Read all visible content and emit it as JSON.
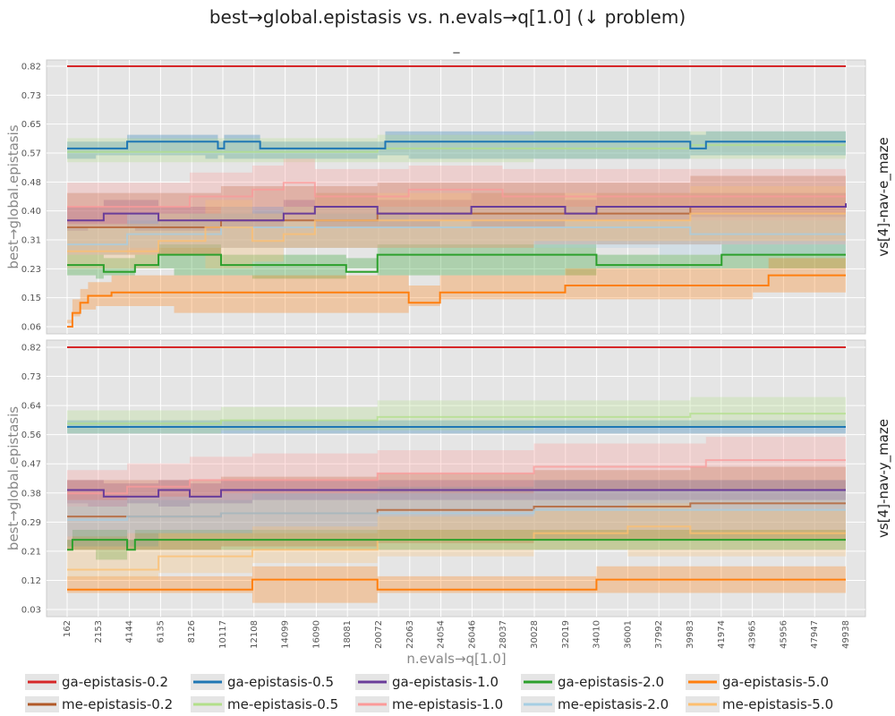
{
  "title": "best→global.epistasis vs. n.evals→q[1.0] (↓ problem)",
  "subtitle": "_",
  "colors": {
    "ga-epistasis-0.2": "#d62728",
    "ga-epistasis-0.5": "#1f77b4",
    "ga-epistasis-1.0": "#6a3d9a",
    "ga-epistasis-2.0": "#2ca02c",
    "ga-epistasis-5.0": "#ff7f0e",
    "me-epistasis-0.2": "#b15928",
    "me-epistasis-0.5": "#b2df8a",
    "me-epistasis-1.0": "#fb9a99",
    "me-epistasis-2.0": "#a6cee3",
    "me-epistasis-5.0": "#fdbf6f"
  },
  "legend": [
    "ga-epistasis-0.2",
    "ga-epistasis-0.5",
    "ga-epistasis-1.0",
    "ga-epistasis-2.0",
    "ga-epistasis-5.0",
    "me-epistasis-0.2",
    "me-epistasis-0.5",
    "me-epistasis-1.0",
    "me-epistasis-2.0",
    "me-epistasis-5.0"
  ],
  "chart_data": {
    "type": "line",
    "xlabel": "n.evals→q[1.0]",
    "ylabel": "best→global.epistasis",
    "xlim": [
      162,
      49938
    ],
    "xticks": [
      162,
      2153,
      4144,
      6135,
      8126,
      10117,
      12108,
      14099,
      16090,
      18081,
      20072,
      22063,
      24054,
      26046,
      28037,
      30028,
      32019,
      34010,
      36001,
      37992,
      39983,
      41974,
      43965,
      45956,
      47947,
      49938
    ],
    "panels": [
      {
        "facet": "vs[4]-nav-e_maze",
        "ylim": [
          0.06,
          0.82
        ],
        "yticks": [
          "0.82",
          "0.73",
          "0.65",
          "0.57",
          "0.48",
          "0.40",
          "0.31",
          "0.23",
          "0.15",
          "0.06"
        ],
        "series": [
          {
            "name": "ga-epistasis-0.2",
            "x": [
              162,
              49938
            ],
            "y": [
              0.82,
              0.82
            ],
            "lo": [
              0.82,
              0.82
            ],
            "hi": [
              0.82,
              0.82
            ]
          },
          {
            "name": "ga-epistasis-0.5",
            "x": [
              162,
              2000,
              4000,
              9000,
              9800,
              10200,
              12500,
              20000,
              20500,
              22000,
              40000,
              41000,
              49938
            ],
            "y": [
              0.58,
              0.58,
              0.6,
              0.6,
              0.58,
              0.6,
              0.58,
              0.58,
              0.6,
              0.6,
              0.58,
              0.6,
              0.6
            ],
            "lo": [
              0.55,
              0.55,
              0.56,
              0.56,
              0.55,
              0.56,
              0.55,
              0.55,
              0.56,
              0.56,
              0.55,
              0.56,
              0.56
            ],
            "hi": [
              0.6,
              0.6,
              0.62,
              0.62,
              0.6,
              0.62,
              0.6,
              0.6,
              0.63,
              0.63,
              0.62,
              0.63,
              0.63
            ]
          },
          {
            "name": "ga-epistasis-1.0",
            "x": [
              162,
              1500,
              2500,
              4500,
              6000,
              10000,
              14000,
              16000,
              20000,
              24000,
              26000,
              32000,
              34000,
              40000,
              49938
            ],
            "y": [
              0.37,
              0.37,
              0.39,
              0.39,
              0.37,
              0.37,
              0.39,
              0.41,
              0.39,
              0.39,
              0.41,
              0.39,
              0.41,
              0.41,
              0.42
            ],
            "lo": [
              0.34,
              0.34,
              0.35,
              0.35,
              0.34,
              0.34,
              0.35,
              0.37,
              0.35,
              0.35,
              0.37,
              0.35,
              0.37,
              0.37,
              0.38
            ],
            "hi": [
              0.41,
              0.41,
              0.43,
              0.43,
              0.41,
              0.41,
              0.43,
              0.45,
              0.43,
              0.43,
              0.45,
              0.43,
              0.45,
              0.45,
              0.46
            ]
          },
          {
            "name": "ga-epistasis-2.0",
            "x": [
              162,
              2000,
              2500,
              4500,
              6000,
              7000,
              10000,
              12000,
              18000,
              20000,
              34000,
              42000,
              49938
            ],
            "y": [
              0.24,
              0.24,
              0.22,
              0.24,
              0.27,
              0.27,
              0.24,
              0.24,
              0.22,
              0.27,
              0.24,
              0.27,
              0.27
            ],
            "lo": [
              0.21,
              0.21,
              0.2,
              0.21,
              0.23,
              0.23,
              0.21,
              0.21,
              0.2,
              0.23,
              0.21,
              0.23,
              0.23
            ],
            "hi": [
              0.27,
              0.27,
              0.26,
              0.27,
              0.3,
              0.3,
              0.27,
              0.27,
              0.26,
              0.3,
              0.27,
              0.3,
              0.3
            ]
          },
          {
            "name": "ga-epistasis-5.0",
            "x": [
              162,
              500,
              1000,
              1500,
              2000,
              3000,
              7000,
              22000,
              24000,
              32000,
              44000,
              45000,
              49938
            ],
            "y": [
              0.06,
              0.1,
              0.13,
              0.15,
              0.15,
              0.16,
              0.16,
              0.13,
              0.16,
              0.18,
              0.18,
              0.21,
              0.21
            ],
            "lo": [
              0.06,
              0.07,
              0.09,
              0.11,
              0.11,
              0.12,
              0.12,
              0.1,
              0.12,
              0.14,
              0.14,
              0.16,
              0.16
            ],
            "hi": [
              0.08,
              0.14,
              0.17,
              0.19,
              0.19,
              0.21,
              0.21,
              0.18,
              0.21,
              0.23,
              0.23,
              0.26,
              0.26
            ]
          },
          {
            "name": "me-epistasis-0.2",
            "x": [
              162,
              10000,
              20000,
              30000,
              40000,
              49938
            ],
            "y": [
              0.35,
              0.37,
              0.39,
              0.39,
              0.41,
              0.41
            ],
            "lo": [
              0.25,
              0.27,
              0.29,
              0.29,
              0.3,
              0.3
            ],
            "hi": [
              0.45,
              0.47,
              0.48,
              0.48,
              0.5,
              0.5
            ]
          },
          {
            "name": "me-epistasis-0.5",
            "x": [
              162,
              10000,
              20000,
              30000,
              40000,
              49938
            ],
            "y": [
              0.57,
              0.57,
              0.58,
              0.58,
              0.59,
              0.59
            ],
            "lo": [
              0.54,
              0.54,
              0.54,
              0.54,
              0.55,
              0.55
            ],
            "hi": [
              0.61,
              0.61,
              0.62,
              0.63,
              0.63,
              0.63
            ]
          },
          {
            "name": "me-epistasis-1.0",
            "x": [
              162,
              4000,
              8000,
              12000,
              14000,
              16000,
              22000,
              28000,
              40000,
              49938
            ],
            "y": [
              0.41,
              0.41,
              0.44,
              0.46,
              0.48,
              0.44,
              0.46,
              0.44,
              0.44,
              0.44
            ],
            "lo": [
              0.35,
              0.35,
              0.37,
              0.39,
              0.4,
              0.37,
              0.39,
              0.37,
              0.37,
              0.37
            ],
            "hi": [
              0.48,
              0.48,
              0.51,
              0.53,
              0.55,
              0.52,
              0.53,
              0.52,
              0.52,
              0.52
            ]
          },
          {
            "name": "me-epistasis-2.0",
            "x": [
              162,
              4000,
              10000,
              20000,
              30000,
              38000,
              40000,
              49938
            ],
            "y": [
              0.3,
              0.33,
              0.35,
              0.35,
              0.35,
              0.35,
              0.33,
              0.33
            ],
            "lo": [
              0.24,
              0.27,
              0.29,
              0.29,
              0.29,
              0.29,
              0.27,
              0.27
            ],
            "hi": [
              0.36,
              0.39,
              0.41,
              0.41,
              0.41,
              0.41,
              0.39,
              0.39
            ]
          },
          {
            "name": "me-epistasis-5.0",
            "x": [
              162,
              6000,
              9000,
              12000,
              14000,
              16000,
              30000,
              40000,
              49938
            ],
            "y": [
              0.28,
              0.31,
              0.35,
              0.31,
              0.33,
              0.37,
              0.37,
              0.39,
              0.39
            ],
            "lo": [
              0.2,
              0.23,
              0.27,
              0.23,
              0.25,
              0.29,
              0.29,
              0.31,
              0.31
            ],
            "hi": [
              0.36,
              0.39,
              0.43,
              0.39,
              0.41,
              0.45,
              0.45,
              0.47,
              0.47
            ]
          }
        ]
      },
      {
        "facet": "vs[4]-nav-y_maze",
        "ylim": [
          0.03,
          0.82
        ],
        "yticks": [
          "0.82",
          "0.73",
          "0.64",
          "0.56",
          "0.47",
          "0.38",
          "0.29",
          "0.21",
          "0.12",
          "0.03"
        ],
        "series": [
          {
            "name": "ga-epistasis-0.2",
            "x": [
              162,
              49938
            ],
            "y": [
              0.82,
              0.82
            ],
            "lo": [
              0.82,
              0.82
            ],
            "hi": [
              0.82,
              0.82
            ]
          },
          {
            "name": "ga-epistasis-0.5",
            "x": [
              162,
              49938
            ],
            "y": [
              0.58,
              0.58
            ],
            "lo": [
              0.56,
              0.56
            ],
            "hi": [
              0.6,
              0.6
            ]
          },
          {
            "name": "ga-epistasis-1.0",
            "x": [
              162,
              1500,
              2500,
              4000,
              6000,
              8000,
              10000,
              12000,
              49938
            ],
            "y": [
              0.39,
              0.39,
              0.37,
              0.37,
              0.39,
              0.37,
              0.39,
              0.39,
              0.39
            ],
            "lo": [
              0.35,
              0.35,
              0.34,
              0.34,
              0.35,
              0.34,
              0.35,
              0.35,
              0.36
            ],
            "hi": [
              0.42,
              0.42,
              0.41,
              0.41,
              0.42,
              0.41,
              0.42,
              0.42,
              0.42
            ]
          },
          {
            "name": "ga-epistasis-2.0",
            "x": [
              162,
              500,
              2000,
              4000,
              4500,
              6000,
              49938
            ],
            "y": [
              0.21,
              0.24,
              0.24,
              0.21,
              0.24,
              0.24,
              0.24
            ],
            "lo": [
              0.18,
              0.21,
              0.21,
              0.18,
              0.21,
              0.21,
              0.21
            ],
            "hi": [
              0.24,
              0.27,
              0.27,
              0.24,
              0.27,
              0.27,
              0.27
            ]
          },
          {
            "name": "ga-epistasis-5.0",
            "x": [
              162,
              12000,
              20000,
              34000,
              49938
            ],
            "y": [
              0.09,
              0.12,
              0.09,
              0.12,
              0.12
            ],
            "lo": [
              0.05,
              0.08,
              0.05,
              0.08,
              0.08
            ],
            "hi": [
              0.13,
              0.16,
              0.13,
              0.16,
              0.16
            ]
          },
          {
            "name": "me-epistasis-0.2",
            "x": [
              162,
              10000,
              20000,
              30000,
              40000,
              49938
            ],
            "y": [
              0.31,
              0.32,
              0.33,
              0.34,
              0.35,
              0.35
            ],
            "lo": [
              0.2,
              0.21,
              0.22,
              0.23,
              0.24,
              0.24
            ],
            "hi": [
              0.42,
              0.43,
              0.44,
              0.45,
              0.46,
              0.46
            ]
          },
          {
            "name": "me-epistasis-0.5",
            "x": [
              162,
              10000,
              20000,
              30000,
              40000,
              49938
            ],
            "y": [
              0.59,
              0.6,
              0.61,
              0.61,
              0.62,
              0.62
            ],
            "lo": [
              0.55,
              0.56,
              0.57,
              0.57,
              0.58,
              0.58
            ],
            "hi": [
              0.63,
              0.64,
              0.66,
              0.66,
              0.67,
              0.67
            ]
          },
          {
            "name": "me-epistasis-1.0",
            "x": [
              162,
              4000,
              8000,
              12000,
              20000,
              30000,
              41000,
              49938
            ],
            "y": [
              0.38,
              0.4,
              0.42,
              0.42,
              0.44,
              0.46,
              0.48,
              0.48
            ],
            "lo": [
              0.32,
              0.34,
              0.36,
              0.36,
              0.38,
              0.4,
              0.42,
              0.42
            ],
            "hi": [
              0.45,
              0.47,
              0.49,
              0.5,
              0.51,
              0.53,
              0.55,
              0.55
            ]
          },
          {
            "name": "me-epistasis-2.0",
            "x": [
              162,
              4000,
              10000,
              20000,
              30000,
              40000,
              49938
            ],
            "y": [
              0.3,
              0.31,
              0.32,
              0.32,
              0.33,
              0.33,
              0.33
            ],
            "lo": [
              0.24,
              0.25,
              0.26,
              0.26,
              0.27,
              0.27,
              0.27
            ],
            "hi": [
              0.36,
              0.37,
              0.38,
              0.38,
              0.39,
              0.39,
              0.39
            ]
          },
          {
            "name": "me-epistasis-5.0",
            "x": [
              162,
              6000,
              12000,
              20000,
              30000,
              36000,
              40000,
              49938
            ],
            "y": [
              0.15,
              0.19,
              0.21,
              0.24,
              0.26,
              0.28,
              0.26,
              0.26
            ],
            "lo": [
              0.09,
              0.12,
              0.14,
              0.17,
              0.19,
              0.21,
              0.19,
              0.19
            ],
            "hi": [
              0.22,
              0.26,
              0.28,
              0.31,
              0.33,
              0.35,
              0.33,
              0.33
            ]
          }
        ]
      }
    ]
  }
}
